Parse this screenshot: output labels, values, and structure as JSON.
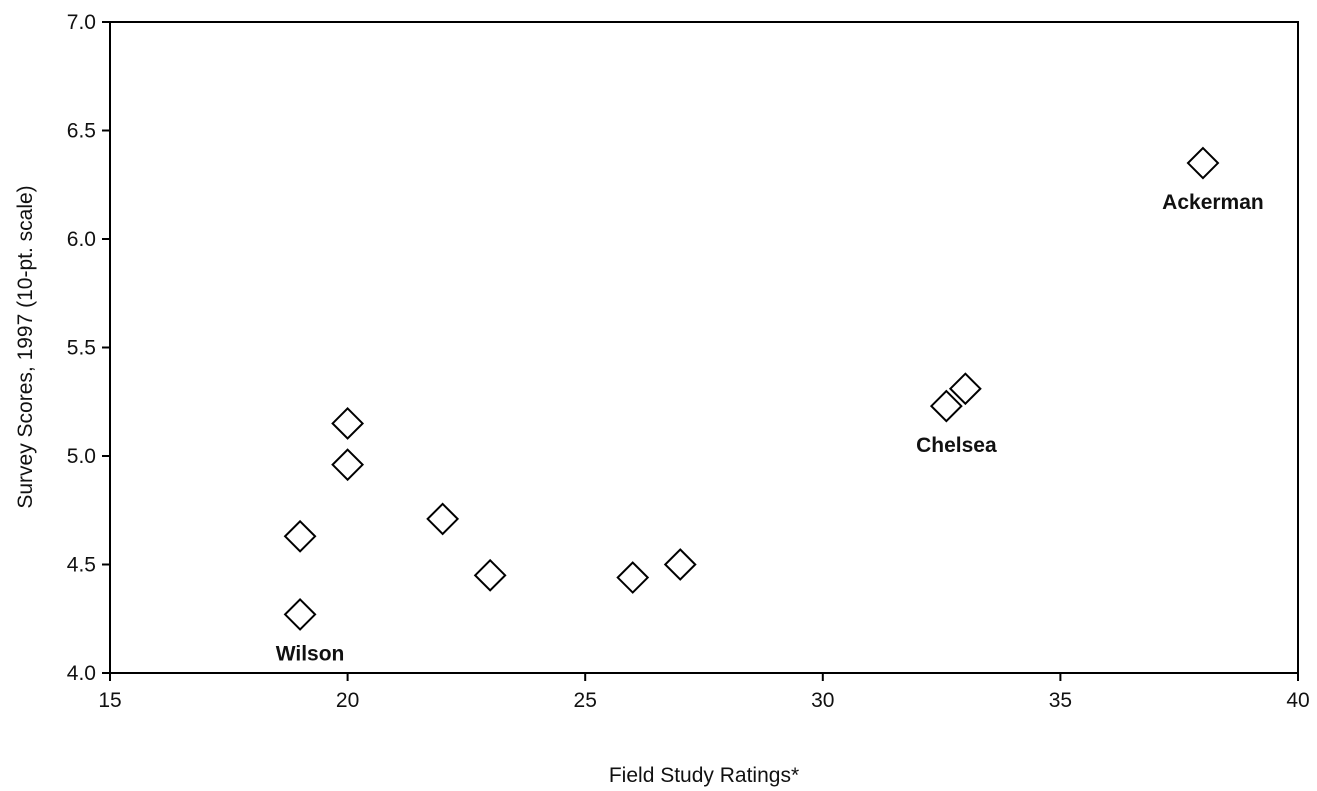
{
  "chart_data": {
    "type": "scatter",
    "title": "",
    "xlabel": "Field Study Ratings*",
    "ylabel": "Survey Scores, 1997 (10-pt. scale)",
    "xlim": [
      15,
      40
    ],
    "ylim": [
      4.0,
      7.0
    ],
    "x_ticks": [
      "15",
      "20",
      "25",
      "30",
      "35",
      "40"
    ],
    "y_ticks": [
      "4.0",
      "4.5",
      "5.0",
      "5.5",
      "6.0",
      "6.5",
      "7.0"
    ],
    "grid": false,
    "legend": "none",
    "marker": "diamond",
    "points": [
      {
        "x": 19.0,
        "y": 4.27,
        "label": "Wilson"
      },
      {
        "x": 19.0,
        "y": 4.63,
        "label": ""
      },
      {
        "x": 20.0,
        "y": 4.96,
        "label": ""
      },
      {
        "x": 20.0,
        "y": 5.15,
        "label": ""
      },
      {
        "x": 22.0,
        "y": 4.71,
        "label": ""
      },
      {
        "x": 23.0,
        "y": 4.45,
        "label": ""
      },
      {
        "x": 26.0,
        "y": 4.44,
        "label": ""
      },
      {
        "x": 27.0,
        "y": 4.5,
        "label": ""
      },
      {
        "x": 32.6,
        "y": 5.23,
        "label": "Chelsea"
      },
      {
        "x": 33.0,
        "y": 5.31,
        "label": ""
      },
      {
        "x": 38.0,
        "y": 6.35,
        "label": "Ackerman"
      }
    ]
  }
}
